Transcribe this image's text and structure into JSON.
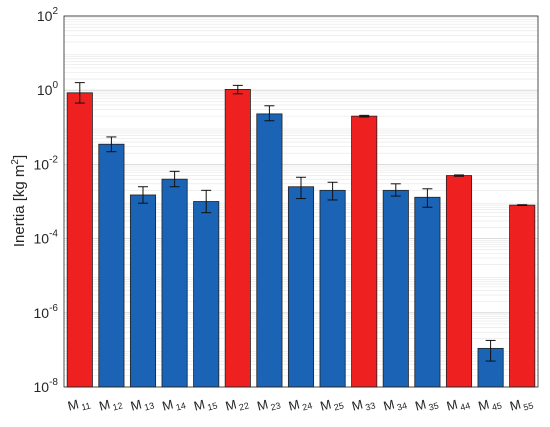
{
  "chart_data": {
    "type": "bar",
    "title": "",
    "xlabel": "",
    "ylabel_text": "Inertia [kg m",
    "ylabel_sup": "2",
    "ylabel_close": "]",
    "yscale": "log",
    "ylim": [
      1e-08,
      100
    ],
    "y_ticks": [
      {
        "value": 1e-08,
        "base": "10",
        "exp": "-8"
      },
      {
        "value": 1e-06,
        "base": "10",
        "exp": "-6"
      },
      {
        "value": 0.0001,
        "base": "10",
        "exp": "-4"
      },
      {
        "value": 0.01,
        "base": "10",
        "exp": "-2"
      },
      {
        "value": 1,
        "base": "10",
        "exp": "0"
      },
      {
        "value": 100,
        "base": "10",
        "exp": "2"
      }
    ],
    "grid": true,
    "categories": [
      {
        "main": "M",
        "sub": "11"
      },
      {
        "main": "M",
        "sub": "12"
      },
      {
        "main": "M",
        "sub": "13"
      },
      {
        "main": "M",
        "sub": "14"
      },
      {
        "main": "M",
        "sub": "15"
      },
      {
        "main": "M",
        "sub": "22"
      },
      {
        "main": "M",
        "sub": "23"
      },
      {
        "main": "M",
        "sub": "24"
      },
      {
        "main": "M",
        "sub": "25"
      },
      {
        "main": "M",
        "sub": "33"
      },
      {
        "main": "M",
        "sub": "34"
      },
      {
        "main": "M",
        "sub": "35"
      },
      {
        "main": "M",
        "sub": "44"
      },
      {
        "main": "M",
        "sub": "45"
      },
      {
        "main": "M",
        "sub": "55"
      }
    ],
    "values": [
      0.85,
      0.035,
      0.0015,
      0.004,
      0.001,
      1.05,
      0.23,
      0.0025,
      0.002,
      0.2,
      0.002,
      0.0013,
      0.005,
      1.1e-07,
      0.0008
    ],
    "error_low": [
      0.45,
      0.022,
      0.0009,
      0.0025,
      0.0005,
      0.8,
      0.15,
      0.0012,
      0.0011,
      0.19,
      0.0014,
      0.0007,
      0.0048,
      5e-08,
      0.00078
    ],
    "error_high": [
      1.6,
      0.055,
      0.0025,
      0.0065,
      0.002,
      1.35,
      0.38,
      0.0045,
      0.0033,
      0.21,
      0.003,
      0.0022,
      0.0052,
      1.8e-07,
      0.00082
    ],
    "colors": [
      "#ee2020",
      "#1a63b5",
      "#1a63b5",
      "#1a63b5",
      "#1a63b5",
      "#ee2020",
      "#1a63b5",
      "#1a63b5",
      "#1a63b5",
      "#ee2020",
      "#1a63b5",
      "#1a63b5",
      "#ee2020",
      "#1a63b5",
      "#ee2020"
    ]
  }
}
